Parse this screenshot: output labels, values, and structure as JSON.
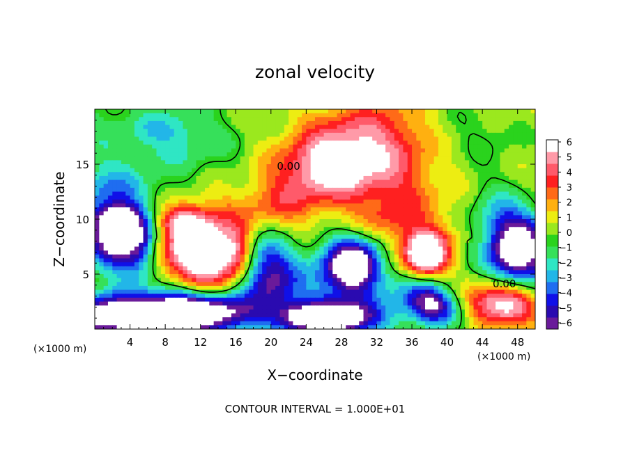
{
  "chart_data": {
    "type": "heatmap",
    "title": "zonal velocity",
    "xlabel": "X−coordinate",
    "ylabel": "Z−coordinate",
    "xunit_left": "(×1000 m)",
    "xunit_right": "(×1000 m)",
    "footer": "CONTOUR INTERVAL = 1.000E+01",
    "xlim": [
      0,
      50
    ],
    "ylim": [
      0,
      20
    ],
    "x_ticks": [
      4,
      8,
      12,
      16,
      20,
      24,
      28,
      32,
      36,
      40,
      44,
      48
    ],
    "y_ticks": [
      5,
      10,
      15
    ],
    "colorbar": {
      "range": [
        -6,
        6
      ],
      "labels": [
        "6",
        "5",
        "4",
        "3",
        "2",
        "1",
        "0",
        "−1",
        "−2",
        "−3",
        "−4",
        "−5",
        "−6"
      ],
      "colors": [
        "#6a1a9a",
        "#2a0ab0",
        "#1010e8",
        "#1f6df0",
        "#22b6e8",
        "#2fe6c4",
        "#36e05a",
        "#2ad31d",
        "#9be81e",
        "#eded12",
        "#ffb010",
        "#ff6a18",
        "#ff2020",
        "#ff5a6a",
        "#ff9aa8",
        "#ffffff"
      ]
    },
    "contour_labels": [
      {
        "text": "0.00",
        "x": 22,
        "y": 14.8
      },
      {
        "text": "0.00",
        "x": 46.5,
        "y": 4.1
      }
    ],
    "blobs": [
      {
        "x": 26.5,
        "y": 14.8,
        "sx": 4.0,
        "sy": 2.4,
        "v": 5.0
      },
      {
        "x": 30,
        "y": 15.5,
        "sx": 5,
        "sy": 3,
        "v": 2.0
      },
      {
        "x": 34,
        "y": 14,
        "sx": 3,
        "sy": 5,
        "v": 1.5
      },
      {
        "x": 37,
        "y": 10,
        "sx": 3,
        "sy": 3,
        "v": 1.0
      },
      {
        "x": 30,
        "y": 18,
        "sx": 6,
        "sy": 2,
        "v": 1.5
      },
      {
        "x": 21,
        "y": 11.5,
        "sx": 3,
        "sy": 2,
        "v": 2.0
      },
      {
        "x": 16,
        "y": 11,
        "sx": 4,
        "sy": 1.5,
        "v": 1.0
      },
      {
        "x": 12,
        "y": 7,
        "sx": 3.2,
        "sy": 2.4,
        "v": 8.0
      },
      {
        "x": 10,
        "y": 9.8,
        "sx": 2.0,
        "sy": 1.0,
        "v": 4.0
      },
      {
        "x": 16,
        "y": 7,
        "sx": 1.5,
        "sy": 1.5,
        "v": 3.0
      },
      {
        "x": 37.5,
        "y": 6.8,
        "sx": 1.8,
        "sy": 1.4,
        "v": 8.0
      },
      {
        "x": 47,
        "y": 2.2,
        "sx": 2.2,
        "sy": 1.3,
        "v": 6.0
      },
      {
        "x": 44,
        "y": 2.5,
        "sx": 2,
        "sy": 1.5,
        "v": 2.5
      },
      {
        "x": 40,
        "y": 3,
        "sx": 1.5,
        "sy": 1,
        "v": 1.5
      },
      {
        "x": 33,
        "y": 10,
        "sx": 2,
        "sy": 1,
        "v": 1.0
      },
      {
        "x": 2.5,
        "y": 8.5,
        "sx": 2.2,
        "sy": 2.0,
        "v": -8.5
      },
      {
        "x": 2.5,
        "y": 10,
        "sx": 1.5,
        "sy": 0.8,
        "v": -4.0
      },
      {
        "x": 5,
        "y": 7,
        "sx": 1.5,
        "sy": 2.5,
        "v": -3.0
      },
      {
        "x": 2.5,
        "y": 1.2,
        "sx": 5,
        "sy": 1.3,
        "v": -9.0
      },
      {
        "x": 13,
        "y": 1.5,
        "sx": 4,
        "sy": 1.3,
        "v": -8.0
      },
      {
        "x": 9,
        "y": 2,
        "sx": 2,
        "sy": 1.5,
        "v": -3.0
      },
      {
        "x": 20,
        "y": 4.3,
        "sx": 2.2,
        "sy": 2.0,
        "v": -5.5
      },
      {
        "x": 19,
        "y": 7,
        "sx": 2,
        "sy": 1.5,
        "v": -2.5
      },
      {
        "x": 28,
        "y": 1,
        "sx": 3.5,
        "sy": 1.2,
        "v": -8.0
      },
      {
        "x": 23,
        "y": 1,
        "sx": 2,
        "sy": 1,
        "v": -4.0
      },
      {
        "x": 29.5,
        "y": 5.8,
        "sx": 2.2,
        "sy": 1.7,
        "v": -8.0
      },
      {
        "x": 27,
        "y": 4.5,
        "sx": 3,
        "sy": 2.5,
        "v": -2.5
      },
      {
        "x": 38.5,
        "y": 2.3,
        "sx": 2.2,
        "sy": 1.3,
        "v": -7.5
      },
      {
        "x": 35,
        "y": 4,
        "sx": 2,
        "sy": 1.5,
        "v": -2.0
      },
      {
        "x": 48.5,
        "y": 7.5,
        "sx": 2.2,
        "sy": 2.3,
        "v": -8.5
      },
      {
        "x": 46,
        "y": 8,
        "sx": 2,
        "sy": 3,
        "v": -2.5
      },
      {
        "x": 44,
        "y": 10,
        "sx": 2,
        "sy": 2,
        "v": -1.0
      },
      {
        "x": 1.5,
        "y": 13,
        "sx": 3,
        "sy": 1.5,
        "v": -2.0
      },
      {
        "x": 9,
        "y": 17,
        "sx": 4,
        "sy": 1.5,
        "v": -1.5
      },
      {
        "x": 24,
        "y": 17.5,
        "sx": 3,
        "sy": 1.2,
        "v": -0.8
      },
      {
        "x": 44,
        "y": 18,
        "sx": 5,
        "sy": 2.2,
        "v": -1.5
      },
      {
        "x": 46,
        "y": 13,
        "sx": 4,
        "sy": 2,
        "v": -0.6
      },
      {
        "x": 8,
        "y": 18.5,
        "sx": 3,
        "sy": 1,
        "v": -1.0
      }
    ]
  }
}
